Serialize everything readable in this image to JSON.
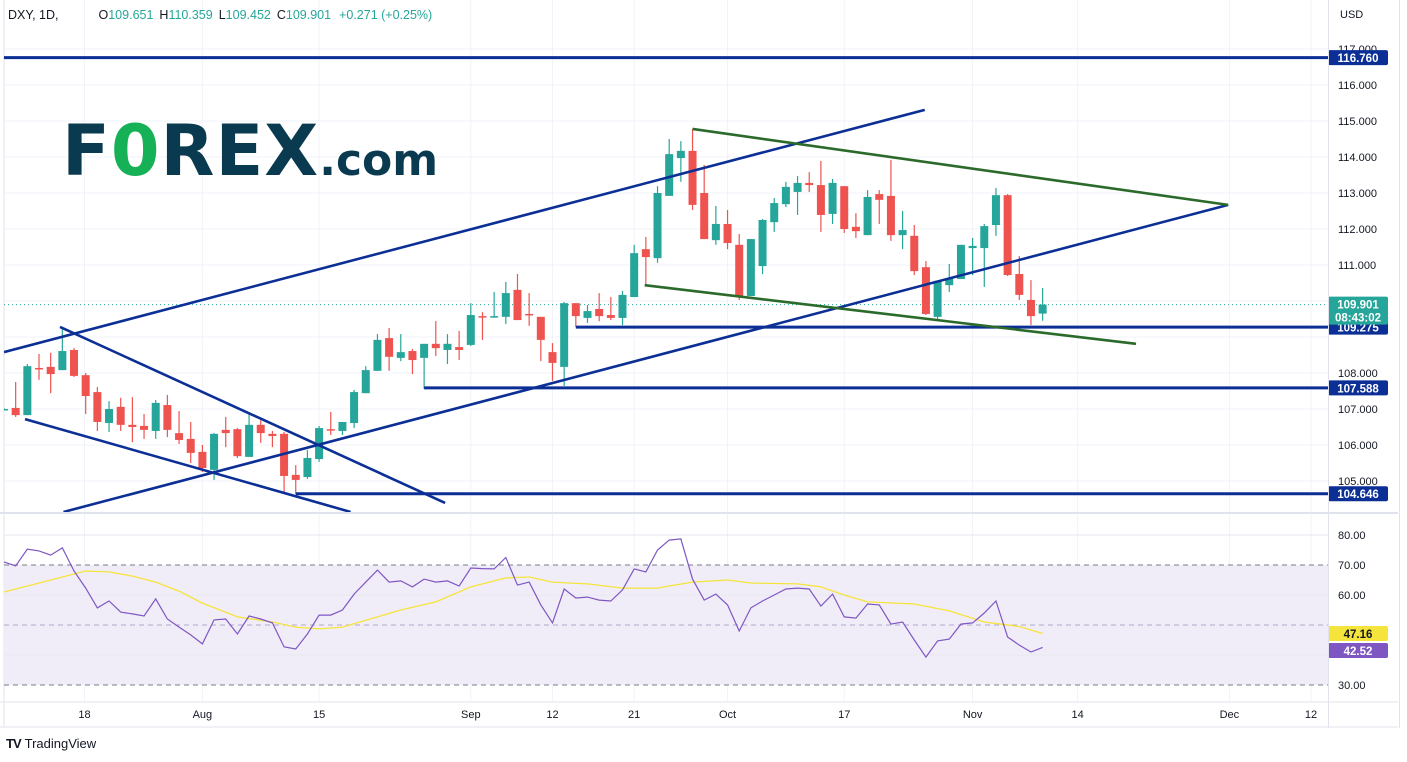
{
  "header": {
    "symbol": "DXY, 1D,",
    "open_label": "O",
    "open": "109.651",
    "high_label": "H",
    "high": "110.359",
    "low_label": "L",
    "low": "109.452",
    "close_label": "C",
    "close": "109.901",
    "change": "+0.271 (+0.25%)"
  },
  "axis": {
    "currency": "USD"
  },
  "logo": {
    "text_left": "F",
    "text_o": "0",
    "text_right": "REX",
    "text_dot": ".com"
  },
  "footer": {
    "brand": "TradingView",
    "brand_icon": "tradingview-logo-icon"
  },
  "colors": {
    "up": "#26a69a",
    "down": "#ef5350",
    "channel_blue": "#0c2f96",
    "channel_green": "#2b6a2b",
    "rsi": "#7e57c2",
    "rsi_ma": "#f5e43b",
    "rsi_band": "#f1edf8"
  },
  "chart_data": [
    {
      "type": "candlestick",
      "title": "DXY, 1D",
      "ylabel": "USD",
      "ylim": [
        104.1,
        117.5
      ],
      "yticks": [
        "117.000",
        "116.000",
        "115.000",
        "114.000",
        "113.000",
        "112.000",
        "111.000",
        "108.000",
        "107.000",
        "106.000",
        "105.000"
      ],
      "xticks": [
        {
          "label": "18",
          "bar": 6.9
        },
        {
          "label": "Aug",
          "bar": 17
        },
        {
          "label": "15",
          "bar": 27
        },
        {
          "label": "Sep",
          "bar": 40
        },
        {
          "label": "12",
          "bar": 47
        },
        {
          "label": "21",
          "bar": 54
        },
        {
          "label": "Oct",
          "bar": 62
        },
        {
          "label": "17",
          "bar": 72
        },
        {
          "label": "Nov",
          "bar": 83
        },
        {
          "label": "14",
          "bar": 92
        },
        {
          "label": "Dec",
          "bar": 105
        },
        {
          "label": "12",
          "bar": 112
        }
      ],
      "ohlc": [
        [
          107.0,
          107.03,
          106.97,
          107.0
        ],
        [
          107.03,
          107.75,
          106.78,
          106.83
        ],
        [
          106.83,
          108.25,
          106.83,
          108.19
        ],
        [
          108.14,
          108.53,
          107.81,
          108.11
        ],
        [
          108.17,
          108.56,
          107.44,
          107.97
        ],
        [
          108.08,
          109.28,
          108.08,
          108.61
        ],
        [
          108.64,
          108.69,
          107.89,
          107.92
        ],
        [
          107.94,
          108.0,
          106.86,
          107.36
        ],
        [
          107.47,
          107.61,
          106.39,
          106.64
        ],
        [
          106.61,
          107.22,
          106.36,
          107.0
        ],
        [
          107.06,
          107.31,
          106.39,
          106.56
        ],
        [
          106.56,
          107.33,
          106.08,
          106.5
        ],
        [
          106.53,
          106.86,
          106.17,
          106.42
        ],
        [
          106.39,
          107.25,
          106.17,
          107.17
        ],
        [
          107.11,
          107.39,
          106.22,
          106.42
        ],
        [
          106.33,
          106.94,
          106.03,
          106.14
        ],
        [
          106.17,
          106.64,
          105.5,
          105.78
        ],
        [
          105.81,
          106.0,
          105.25,
          105.36
        ],
        [
          105.31,
          106.33,
          105.03,
          106.31
        ],
        [
          106.42,
          106.78,
          105.94,
          106.33
        ],
        [
          106.44,
          106.47,
          105.64,
          105.69
        ],
        [
          105.67,
          106.86,
          105.67,
          106.56
        ],
        [
          106.56,
          106.69,
          106.06,
          106.33
        ],
        [
          106.31,
          106.39,
          105.94,
          106.25
        ],
        [
          106.31,
          106.36,
          104.69,
          105.14
        ],
        [
          105.17,
          105.44,
          104.64,
          105.03
        ],
        [
          105.11,
          105.86,
          105.06,
          105.64
        ],
        [
          105.61,
          106.53,
          105.53,
          106.47
        ],
        [
          106.44,
          106.92,
          106.28,
          106.42
        ],
        [
          106.39,
          106.64,
          106.28,
          106.64
        ],
        [
          106.61,
          107.53,
          106.47,
          107.47
        ],
        [
          107.44,
          108.19,
          107.44,
          108.08
        ],
        [
          108.06,
          109.08,
          108.06,
          108.92
        ],
        [
          108.97,
          109.25,
          108.06,
          108.45
        ],
        [
          108.42,
          109.08,
          108.33,
          108.58
        ],
        [
          108.61,
          108.67,
          107.97,
          108.36
        ],
        [
          108.42,
          108.81,
          107.56,
          108.81
        ],
        [
          108.81,
          109.44,
          108.47,
          108.69
        ],
        [
          108.64,
          109.08,
          108.25,
          108.81
        ],
        [
          108.72,
          109.17,
          108.36,
          108.64
        ],
        [
          108.78,
          109.94,
          108.75,
          109.61
        ],
        [
          109.58,
          109.69,
          108.92,
          109.56
        ],
        [
          109.55,
          110.25,
          109.53,
          109.58
        ],
        [
          109.56,
          110.53,
          109.36,
          110.22
        ],
        [
          110.31,
          110.75,
          109.47,
          109.47
        ],
        [
          109.64,
          110.22,
          109.31,
          109.62
        ],
        [
          109.56,
          109.56,
          108.33,
          108.92
        ],
        [
          108.58,
          108.83,
          107.78,
          108.28
        ],
        [
          108.17,
          109.97,
          107.64,
          109.94
        ],
        [
          109.94,
          109.94,
          109.28,
          109.58
        ],
        [
          109.53,
          109.89,
          109.39,
          109.72
        ],
        [
          109.78,
          110.22,
          109.44,
          109.58
        ],
        [
          109.61,
          110.11,
          109.47,
          109.53
        ],
        [
          109.53,
          110.28,
          109.33,
          110.17
        ],
        [
          110.11,
          111.56,
          110.11,
          111.33
        ],
        [
          111.44,
          111.78,
          110.44,
          111.22
        ],
        [
          111.19,
          113.19,
          111.06,
          113.0
        ],
        [
          112.92,
          114.5,
          112.92,
          114.08
        ],
        [
          113.97,
          114.44,
          113.31,
          114.17
        ],
        [
          114.17,
          114.78,
          112.53,
          112.67
        ],
        [
          113.0,
          113.78,
          111.72,
          111.72
        ],
        [
          111.69,
          112.64,
          111.56,
          112.14
        ],
        [
          112.14,
          112.53,
          111.44,
          111.61
        ],
        [
          111.56,
          111.86,
          110.03,
          110.14
        ],
        [
          110.14,
          111.72,
          110.14,
          111.72
        ],
        [
          110.97,
          112.28,
          110.75,
          112.25
        ],
        [
          112.19,
          112.86,
          111.92,
          112.72
        ],
        [
          112.69,
          113.31,
          112.61,
          113.17
        ],
        [
          113.03,
          113.47,
          112.39,
          113.28
        ],
        [
          113.28,
          113.58,
          113.03,
          113.22
        ],
        [
          113.22,
          113.89,
          111.92,
          112.39
        ],
        [
          112.42,
          113.39,
          112.14,
          113.28
        ],
        [
          113.19,
          113.19,
          111.89,
          112.0
        ],
        [
          112.06,
          112.44,
          111.75,
          111.94
        ],
        [
          111.83,
          113.08,
          111.83,
          112.89
        ],
        [
          112.97,
          113.08,
          112.14,
          112.81
        ],
        [
          112.92,
          113.92,
          111.67,
          111.83
        ],
        [
          111.83,
          112.5,
          111.44,
          111.97
        ],
        [
          111.81,
          112.11,
          110.72,
          110.83
        ],
        [
          110.94,
          111.11,
          109.61,
          109.64
        ],
        [
          109.56,
          110.56,
          109.47,
          110.56
        ],
        [
          110.44,
          111.03,
          110.25,
          110.64
        ],
        [
          110.61,
          111.56,
          110.61,
          111.56
        ],
        [
          111.47,
          111.75,
          110.72,
          111.53
        ],
        [
          111.47,
          112.14,
          110.39,
          112.08
        ],
        [
          112.11,
          113.14,
          111.81,
          112.94
        ],
        [
          112.94,
          112.97,
          110.69,
          110.72
        ],
        [
          110.75,
          111.25,
          110.03,
          110.17
        ],
        [
          110.03,
          110.58,
          109.33,
          109.58
        ],
        [
          109.651,
          110.359,
          109.452,
          109.901
        ]
      ],
      "last_price": {
        "value": "109.901",
        "countdown": "08:43:02"
      },
      "horizontal_levels": [
        {
          "price": 116.76,
          "label": "116.760",
          "from_bar": 0
        },
        {
          "price": 109.275,
          "label": "109.275",
          "from_bar": 49
        },
        {
          "price": 107.588,
          "label": "107.588",
          "from_bar": 36
        },
        {
          "price": 104.646,
          "label": "104.646",
          "from_bar": 25
        }
      ],
      "trendlines": [
        {
          "color": "blue",
          "points": [
            [
              0,
              108.58
            ],
            [
              78.9,
              115.31
            ]
          ]
        },
        {
          "color": "blue",
          "points": [
            [
              5.1,
              104.14
            ],
            [
              104.9,
              112.67
            ]
          ]
        },
        {
          "color": "blue",
          "points": [
            [
              4.8,
              109.28
            ],
            [
              37.8,
              104.39
            ]
          ]
        },
        {
          "color": "blue",
          "points": [
            [
              1.8,
              106.72
            ],
            [
              29.7,
              104.14
            ]
          ]
        },
        {
          "color": "green",
          "points": [
            [
              59,
              114.78
            ],
            [
              104.9,
              112.67
            ]
          ]
        },
        {
          "color": "green",
          "points": [
            [
              54.9,
              110.44
            ],
            [
              97,
              108.81
            ]
          ]
        }
      ]
    },
    {
      "type": "line",
      "title": "",
      "ylim": [
        25,
        85
      ],
      "yticks": [
        "80.00",
        "70.00",
        "60.00",
        "30.00"
      ],
      "bands": {
        "upper": 70,
        "middle": 50,
        "lower": 30
      },
      "series": [
        {
          "key": "rsi",
          "last": "42.52",
          "values": [
            71,
            69.7,
            75.3,
            74.7,
            73.3,
            75.7,
            68,
            62.3,
            55.7,
            58,
            54.3,
            53.7,
            53,
            58.7,
            52,
            49.3,
            46.7,
            43.7,
            51.7,
            52,
            47,
            53,
            52,
            50.7,
            42.7,
            42,
            47,
            53.3,
            53.3,
            55,
            60.3,
            64.3,
            68.3,
            64.3,
            64.7,
            62.7,
            65.3,
            64.3,
            64.7,
            63,
            69,
            68.8,
            68.7,
            72.5,
            63.3,
            64.3,
            56.7,
            50.7,
            62,
            59,
            59.3,
            58.3,
            58,
            61.7,
            68.7,
            67.7,
            75,
            78.3,
            78.7,
            65.3,
            58.3,
            60.3,
            56.7,
            48,
            55.7,
            58,
            60,
            62,
            62.3,
            62,
            56.3,
            60.3,
            52.7,
            52.3,
            57,
            56.7,
            50.3,
            51,
            45,
            39.3,
            44.7,
            45.3,
            50.3,
            50.7,
            54,
            58,
            46,
            43.3,
            41,
            42.52
          ]
        },
        {
          "key": "rsi_ma",
          "last": "47.16",
          "points": [
            [
              0,
              61
            ],
            [
              7,
              68
            ],
            [
              9,
              67.7
            ],
            [
              11,
              66.3
            ],
            [
              13,
              64.3
            ],
            [
              15,
              61.3
            ],
            [
              17,
              57.3
            ],
            [
              20,
              52.7
            ],
            [
              23,
              51
            ],
            [
              25,
              49.3
            ],
            [
              27,
              48.7
            ],
            [
              29,
              49.3
            ],
            [
              32,
              52.7
            ],
            [
              34,
              55
            ],
            [
              37,
              57.7
            ],
            [
              40,
              62.7
            ],
            [
              43,
              65.7
            ],
            [
              45,
              66
            ],
            [
              47,
              64.3
            ],
            [
              50,
              63.7
            ],
            [
              53,
              62.3
            ],
            [
              56,
              62.3
            ],
            [
              57,
              63
            ],
            [
              59,
              64.3
            ],
            [
              62,
              65
            ],
            [
              64,
              64
            ],
            [
              68,
              63.7
            ],
            [
              70,
              62.7
            ],
            [
              72,
              60
            ],
            [
              74,
              57.7
            ],
            [
              78,
              57
            ],
            [
              81,
              54.7
            ],
            [
              84,
              51
            ],
            [
              87,
              49.5
            ],
            [
              89,
              47.16
            ]
          ]
        }
      ]
    }
  ]
}
